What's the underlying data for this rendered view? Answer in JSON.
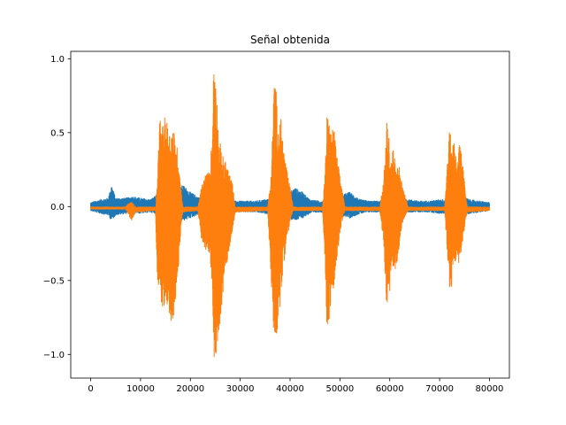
{
  "chart_data": {
    "type": "line",
    "title": "Señal obtenida",
    "xlabel": "",
    "ylabel": "",
    "xlim": [
      -4000,
      84000
    ],
    "ylim": [
      -1.16,
      1.05
    ],
    "grid": false,
    "x_ticks": [
      0,
      10000,
      20000,
      30000,
      40000,
      50000,
      60000,
      70000,
      80000
    ],
    "x_tick_labels": [
      "0",
      "10000",
      "20000",
      "30000",
      "40000",
      "50000",
      "60000",
      "70000",
      "80000"
    ],
    "y_ticks": [
      -1.0,
      -0.5,
      0.0,
      0.5,
      1.0
    ],
    "y_tick_labels": [
      "−1.0",
      "−0.5",
      "0.0",
      "0.5",
      "1.0"
    ],
    "x_range": [
      0,
      80000
    ],
    "series": [
      {
        "color": "#1f77b4",
        "envelope": {
          "x": [
            0,
            2000,
            3500,
            4200,
            5000,
            7000,
            8500,
            10000,
            12000,
            13500,
            15000,
            17000,
            18500,
            20000,
            22000,
            24000,
            26000,
            28000,
            30000,
            33000,
            35000,
            37000,
            39000,
            41000,
            42500,
            44000,
            46000,
            48000,
            50000,
            52000,
            54000,
            56000,
            58000,
            60000,
            62000,
            64000,
            66000,
            68000,
            70000,
            72000,
            74000,
            76000,
            78000,
            80000
          ],
          "upper": [
            0.03,
            0.05,
            0.06,
            0.15,
            0.06,
            0.06,
            0.07,
            0.06,
            0.05,
            0.09,
            0.12,
            0.1,
            0.15,
            0.1,
            0.06,
            0.06,
            0.05,
            0.04,
            0.04,
            0.04,
            0.05,
            0.06,
            0.08,
            0.13,
            0.1,
            0.05,
            0.04,
            0.05,
            0.08,
            0.1,
            0.05,
            0.04,
            0.04,
            0.05,
            0.06,
            0.05,
            0.04,
            0.04,
            0.05,
            0.05,
            0.08,
            0.05,
            0.04,
            0.03
          ],
          "lower": [
            -0.03,
            -0.05,
            -0.06,
            -0.1,
            -0.06,
            -0.05,
            -0.04,
            -0.05,
            -0.04,
            -0.06,
            -0.1,
            -0.12,
            -0.1,
            -0.08,
            -0.05,
            -0.05,
            -0.05,
            -0.04,
            -0.04,
            -0.04,
            -0.05,
            -0.05,
            -0.08,
            -0.1,
            -0.08,
            -0.05,
            -0.04,
            -0.05,
            -0.06,
            -0.08,
            -0.05,
            -0.04,
            -0.04,
            -0.05,
            -0.05,
            -0.04,
            -0.04,
            -0.04,
            -0.05,
            -0.05,
            -0.06,
            -0.05,
            -0.04,
            -0.03
          ]
        }
      },
      {
        "color": "#ff7f0e",
        "envelope": {
          "x": [
            0,
            7000,
            7500,
            8200,
            9000,
            13000,
            13400,
            13800,
            14400,
            15000,
            15800,
            16500,
            17500,
            18200,
            18500,
            21500,
            22300,
            23000,
            23800,
            24400,
            24700,
            25100,
            25600,
            26500,
            27500,
            28500,
            29000,
            35500,
            36200,
            36800,
            37100,
            37600,
            38200,
            38700,
            39500,
            40200,
            40600,
            46500,
            47000,
            47400,
            47800,
            48300,
            48800,
            49200,
            49600,
            50300,
            51000,
            58000,
            58800,
            59400,
            59800,
            60200,
            60700,
            61200,
            61800,
            62500,
            63200,
            63700,
            71000,
            71500,
            72000,
            72400,
            72700,
            73000,
            73500,
            74000,
            74600,
            75200,
            75600,
            80000
          ],
          "upper": [
            0.0,
            0.0,
            0.02,
            0.04,
            0.0,
            0.0,
            0.18,
            0.6,
            0.55,
            0.62,
            0.52,
            0.55,
            0.38,
            0.1,
            0.0,
            0.0,
            0.15,
            0.22,
            0.24,
            0.5,
            1.0,
            0.96,
            0.5,
            0.35,
            0.27,
            0.15,
            0.0,
            0.0,
            0.22,
            0.87,
            0.86,
            0.55,
            0.6,
            0.4,
            0.22,
            0.1,
            0.0,
            0.0,
            0.22,
            0.64,
            0.58,
            0.5,
            0.56,
            0.4,
            0.3,
            0.15,
            0.0,
            0.0,
            0.2,
            0.58,
            0.52,
            0.3,
            0.42,
            0.25,
            0.3,
            0.15,
            0.06,
            0.0,
            0.0,
            0.3,
            0.56,
            0.4,
            0.48,
            0.45,
            0.3,
            0.45,
            0.3,
            0.1,
            0.0,
            0.0
          ],
          "lower": [
            -0.02,
            -0.02,
            -0.05,
            -0.1,
            -0.04,
            -0.03,
            -0.58,
            -0.6,
            -0.68,
            -0.72,
            -0.78,
            -0.8,
            -0.5,
            -0.1,
            -0.04,
            -0.03,
            -0.25,
            -0.3,
            -0.32,
            -0.55,
            -1.06,
            -1.0,
            -0.9,
            -0.6,
            -0.35,
            -0.15,
            -0.04,
            -0.03,
            -0.5,
            -0.92,
            -0.94,
            -0.82,
            -0.6,
            -0.4,
            -0.2,
            -0.08,
            -0.03,
            -0.03,
            -0.35,
            -0.85,
            -0.78,
            -0.6,
            -0.58,
            -0.45,
            -0.3,
            -0.12,
            -0.03,
            -0.03,
            -0.25,
            -0.74,
            -0.7,
            -0.45,
            -0.4,
            -0.45,
            -0.3,
            -0.12,
            -0.06,
            -0.03,
            -0.03,
            -0.3,
            -0.6,
            -0.55,
            -0.4,
            -0.4,
            -0.4,
            -0.38,
            -0.25,
            -0.1,
            -0.04,
            -0.03
          ]
        }
      }
    ]
  }
}
